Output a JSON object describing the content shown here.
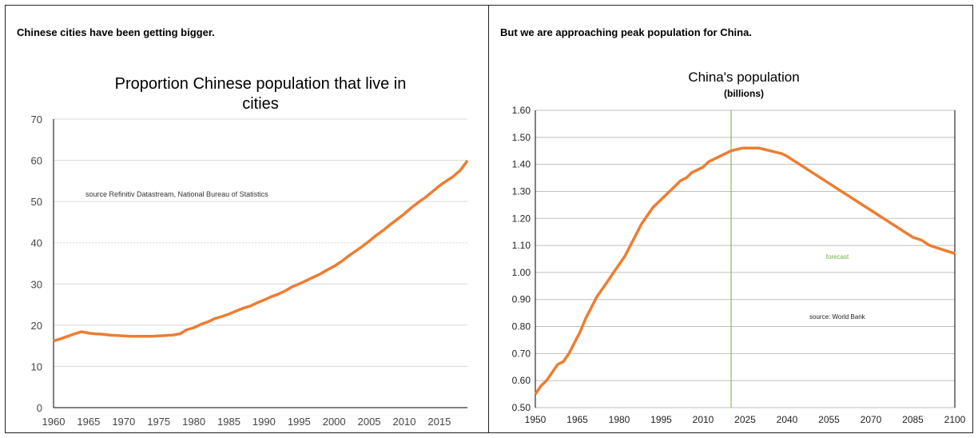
{
  "left_panel": {
    "headline": "Chinese cities have been getting bigger."
  },
  "right_panel": {
    "headline": "But we are approaching peak population for China."
  },
  "colors": {
    "line": "#ed7d31",
    "forecast_line": "#70ad47",
    "grid": "#d9d9d9",
    "axis": "#000000"
  },
  "chart_data": [
    {
      "type": "line",
      "title": "Proportion Chinese population that live in cities",
      "title_lines": [
        "Proportion Chinese population that live in",
        "cities"
      ],
      "xlabel": "",
      "ylabel": "",
      "annotation": "source  Refinitiv Datastream, National Bureau of Statistics",
      "xlim": [
        1960,
        2019
      ],
      "ylim": [
        0,
        70
      ],
      "grid": true,
      "yticks": [
        0,
        10,
        20,
        30,
        40,
        50,
        60,
        70
      ],
      "xticks": [
        1960,
        1965,
        1970,
        1975,
        1980,
        1985,
        1990,
        1995,
        2000,
        2005,
        2010,
        2015
      ],
      "series": [
        {
          "x": [
            1960,
            1961,
            1962,
            1963,
            1964,
            1965,
            1966,
            1967,
            1968,
            1969,
            1970,
            1971,
            1972,
            1973,
            1974,
            1975,
            1976,
            1977,
            1978,
            1979,
            1980,
            1981,
            1982,
            1983,
            1984,
            1985,
            1986,
            1987,
            1988,
            1989,
            1990,
            1991,
            1992,
            1993,
            1994,
            1995,
            1996,
            1997,
            1998,
            1999,
            2000,
            2001,
            2002,
            2003,
            2004,
            2005,
            2006,
            2007,
            2008,
            2009,
            2010,
            2011,
            2012,
            2013,
            2014,
            2015,
            2016,
            2017,
            2018,
            2019
          ],
          "y": [
            16.2,
            16.7,
            17.3,
            17.9,
            18.4,
            18.1,
            17.9,
            17.8,
            17.6,
            17.5,
            17.4,
            17.3,
            17.3,
            17.3,
            17.3,
            17.4,
            17.5,
            17.6,
            17.9,
            18.9,
            19.4,
            20.2,
            20.8,
            21.6,
            22.1,
            22.7,
            23.4,
            24.1,
            24.6,
            25.4,
            26.1,
            26.9,
            27.5,
            28.3,
            29.3,
            30.0,
            30.8,
            31.6,
            32.4,
            33.4,
            34.3,
            35.4,
            36.7,
            37.9,
            39.1,
            40.4,
            41.8,
            43.0,
            44.4,
            45.7,
            47.0,
            48.5,
            49.8,
            51.0,
            52.4,
            53.8,
            55.0,
            56.1,
            57.6,
            59.9
          ]
        }
      ]
    },
    {
      "type": "line",
      "title": "China's population",
      "subtitle": "(billions)",
      "xlabel": "",
      "ylabel": "",
      "annotation": "source:  World Bank",
      "forecast_label": "forecast",
      "forecast_start": 2020,
      "xlim": [
        1950,
        2100
      ],
      "ylim": [
        0.5,
        1.6
      ],
      "grid": true,
      "yticks": [
        "0.50",
        "0.60",
        "0.70",
        "0.80",
        "0.90",
        "1.00",
        "1.10",
        "1.20",
        "1.30",
        "1.40",
        "1.50",
        "1.60"
      ],
      "xticks": [
        1950,
        1965,
        1980,
        1995,
        2010,
        2025,
        2040,
        2055,
        2070,
        2085,
        2100
      ],
      "series": [
        {
          "x": [
            1950,
            1952,
            1954,
            1956,
            1958,
            1960,
            1962,
            1964,
            1966,
            1968,
            1970,
            1972,
            1974,
            1976,
            1978,
            1980,
            1982,
            1984,
            1986,
            1988,
            1990,
            1992,
            1994,
            1996,
            1998,
            2000,
            2002,
            2004,
            2006,
            2008,
            2010,
            2012,
            2014,
            2016,
            2018,
            2020,
            2022,
            2024,
            2026,
            2028,
            2030,
            2032,
            2034,
            2036,
            2038,
            2040,
            2043,
            2046,
            2049,
            2052,
            2055,
            2058,
            2061,
            2064,
            2067,
            2070,
            2073,
            2076,
            2079,
            2082,
            2085,
            2088,
            2091,
            2094,
            2097,
            2100
          ],
          "y": [
            0.55,
            0.58,
            0.6,
            0.63,
            0.66,
            0.67,
            0.7,
            0.74,
            0.78,
            0.83,
            0.87,
            0.91,
            0.94,
            0.97,
            1.0,
            1.03,
            1.06,
            1.1,
            1.14,
            1.18,
            1.21,
            1.24,
            1.26,
            1.28,
            1.3,
            1.32,
            1.34,
            1.35,
            1.37,
            1.38,
            1.39,
            1.41,
            1.42,
            1.43,
            1.44,
            1.45,
            1.455,
            1.46,
            1.46,
            1.46,
            1.46,
            1.455,
            1.45,
            1.445,
            1.44,
            1.43,
            1.41,
            1.39,
            1.37,
            1.35,
            1.33,
            1.31,
            1.29,
            1.27,
            1.25,
            1.23,
            1.21,
            1.19,
            1.17,
            1.15,
            1.13,
            1.12,
            1.1,
            1.09,
            1.08,
            1.07
          ]
        }
      ]
    }
  ]
}
